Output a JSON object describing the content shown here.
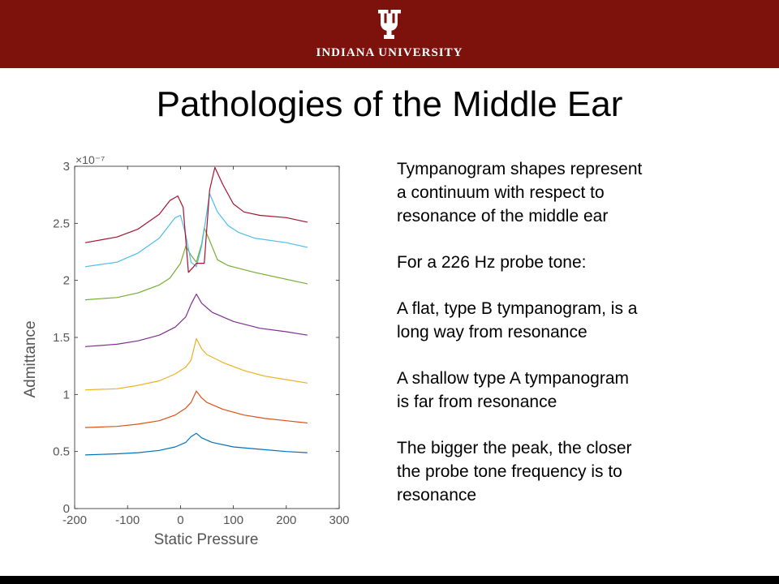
{
  "header": {
    "logo_text": "INDIANA UNIVERSITY",
    "banner_color": "#7d110c"
  },
  "slide": {
    "title": "Pathologies of the Middle Ear",
    "paragraphs": [
      "Tympanogram shapes represent\na continuum with respect to\nresonance of the middle ear",
      "For a 226 Hz probe tone:",
      "A flat, type B tympanogram, is a\nlong way from resonance",
      "A shallow type A tympanogram\nis far from resonance",
      "The bigger the peak, the closer\nthe probe tone frequency is to\nresonance"
    ]
  },
  "chart_data": {
    "type": "line",
    "xlabel": "Static Pressure",
    "ylabel": "Admittance",
    "exponent_label": "×10⁻⁷",
    "xlim": [
      -200,
      300
    ],
    "ylim": [
      0,
      3
    ],
    "xticks": [
      -200,
      -100,
      0,
      100,
      200,
      300
    ],
    "yticks": [
      0,
      0.5,
      1,
      1.5,
      2,
      2.5,
      3
    ],
    "ytick_labels": [
      "0",
      "0.5",
      "1",
      "1.5",
      "2",
      "2.5",
      "3"
    ],
    "grid": false,
    "series": [
      {
        "color": "#0072bd",
        "points": [
          [
            -180,
            0.47
          ],
          [
            -120,
            0.48
          ],
          [
            -80,
            0.49
          ],
          [
            -40,
            0.51
          ],
          [
            -10,
            0.54
          ],
          [
            10,
            0.58
          ],
          [
            20,
            0.63
          ],
          [
            30,
            0.66
          ],
          [
            40,
            0.62
          ],
          [
            60,
            0.58
          ],
          [
            100,
            0.54
          ],
          [
            150,
            0.52
          ],
          [
            200,
            0.5
          ],
          [
            240,
            0.49
          ]
        ]
      },
      {
        "color": "#d95319",
        "points": [
          [
            -180,
            0.71
          ],
          [
            -120,
            0.72
          ],
          [
            -80,
            0.74
          ],
          [
            -40,
            0.77
          ],
          [
            -10,
            0.82
          ],
          [
            10,
            0.88
          ],
          [
            20,
            0.93
          ],
          [
            30,
            1.03
          ],
          [
            40,
            0.97
          ],
          [
            50,
            0.93
          ],
          [
            80,
            0.87
          ],
          [
            120,
            0.82
          ],
          [
            160,
            0.79
          ],
          [
            200,
            0.77
          ],
          [
            240,
            0.75
          ]
        ]
      },
      {
        "color": "#edb120",
        "points": [
          [
            -180,
            1.04
          ],
          [
            -120,
            1.05
          ],
          [
            -80,
            1.08
          ],
          [
            -40,
            1.12
          ],
          [
            -10,
            1.18
          ],
          [
            10,
            1.24
          ],
          [
            20,
            1.3
          ],
          [
            30,
            1.49
          ],
          [
            40,
            1.4
          ],
          [
            50,
            1.35
          ],
          [
            80,
            1.28
          ],
          [
            120,
            1.21
          ],
          [
            160,
            1.16
          ],
          [
            200,
            1.13
          ],
          [
            240,
            1.1
          ]
        ]
      },
      {
        "color": "#7e2f8e",
        "points": [
          [
            -180,
            1.42
          ],
          [
            -120,
            1.44
          ],
          [
            -80,
            1.47
          ],
          [
            -40,
            1.52
          ],
          [
            -10,
            1.59
          ],
          [
            10,
            1.68
          ],
          [
            20,
            1.79
          ],
          [
            30,
            1.88
          ],
          [
            40,
            1.8
          ],
          [
            60,
            1.72
          ],
          [
            100,
            1.64
          ],
          [
            150,
            1.58
          ],
          [
            200,
            1.55
          ],
          [
            240,
            1.52
          ]
        ]
      },
      {
        "color": "#77ac30",
        "points": [
          [
            -180,
            1.83
          ],
          [
            -120,
            1.85
          ],
          [
            -80,
            1.89
          ],
          [
            -40,
            1.96
          ],
          [
            -20,
            2.02
          ],
          [
            0,
            2.15
          ],
          [
            10,
            2.3
          ],
          [
            20,
            2.22
          ],
          [
            30,
            2.16
          ],
          [
            40,
            2.32
          ],
          [
            45,
            2.46
          ],
          [
            55,
            2.35
          ],
          [
            70,
            2.18
          ],
          [
            90,
            2.13
          ],
          [
            140,
            2.07
          ],
          [
            200,
            2.01
          ],
          [
            240,
            1.97
          ]
        ]
      },
      {
        "color": "#4dbeee",
        "points": [
          [
            -180,
            2.12
          ],
          [
            -120,
            2.16
          ],
          [
            -80,
            2.24
          ],
          [
            -40,
            2.37
          ],
          [
            -10,
            2.55
          ],
          [
            0,
            2.57
          ],
          [
            10,
            2.4
          ],
          [
            20,
            2.16
          ],
          [
            30,
            2.12
          ],
          [
            40,
            2.3
          ],
          [
            55,
            2.76
          ],
          [
            70,
            2.6
          ],
          [
            90,
            2.48
          ],
          [
            110,
            2.42
          ],
          [
            140,
            2.37
          ],
          [
            200,
            2.33
          ],
          [
            240,
            2.29
          ]
        ]
      },
      {
        "color": "#a2142f",
        "points": [
          [
            -180,
            2.33
          ],
          [
            -120,
            2.38
          ],
          [
            -80,
            2.45
          ],
          [
            -40,
            2.58
          ],
          [
            -20,
            2.7
          ],
          [
            -5,
            2.74
          ],
          [
            5,
            2.64
          ],
          [
            15,
            2.07
          ],
          [
            25,
            2.12
          ],
          [
            30,
            2.15
          ],
          [
            45,
            2.15
          ],
          [
            55,
            2.79
          ],
          [
            65,
            2.99
          ],
          [
            80,
            2.84
          ],
          [
            100,
            2.67
          ],
          [
            120,
            2.6
          ],
          [
            150,
            2.57
          ],
          [
            200,
            2.55
          ],
          [
            240,
            2.51
          ]
        ]
      }
    ]
  }
}
